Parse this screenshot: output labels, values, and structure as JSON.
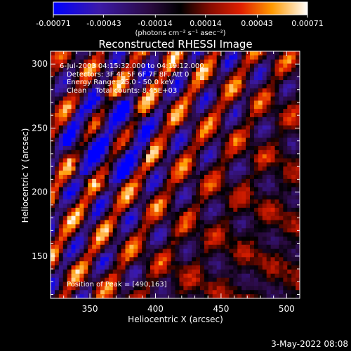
{
  "colorbar": {
    "ticks": [
      "-0.00071",
      "-0.00043",
      "-0.00014",
      "0.00014",
      "0.00043",
      "0.00071"
    ],
    "tick_values": [
      -0.00071,
      -0.00043,
      -0.00014,
      0.00014,
      0.00043,
      0.00071
    ],
    "range": [
      -0.00071,
      0.00071
    ],
    "unit_label": "(photons cm⁻² s⁻¹ asec⁻²)",
    "colormap": [
      "#0000ff",
      "#3c1aa8",
      "#2a0a40",
      "#000000",
      "#6a0a00",
      "#c81400",
      "#ff6400",
      "#ffc800",
      "#ffffff"
    ]
  },
  "chart_data": {
    "type": "heatmap",
    "title": "Reconstructed RHESSI Image",
    "xlabel": "Heliocentric X (arcsec)",
    "ylabel": "Heliocentric Y (arcsec)",
    "xlim": [
      320,
      510
    ],
    "ylim": [
      117,
      310
    ],
    "xticks": [
      350,
      400,
      450,
      500
    ],
    "yticks": [
      150,
      200,
      250,
      300
    ],
    "annotations": {
      "time": "6-Jul-2003 04:15:32.000 to 04:19:12.000",
      "detectors": "Detectors: 3F 4F 5F 6F 7F 8F, Att 0",
      "energy": "Energy Range: 25.0 - 50.0 keV",
      "method": "Clean    Total counts: 8.45E+03",
      "peak": "Position of Peak = [490,163]"
    },
    "peak": {
      "x": 490,
      "y": 163
    },
    "grid": false
  },
  "footer": {
    "timestamp": "3-May-2022 08:08"
  }
}
